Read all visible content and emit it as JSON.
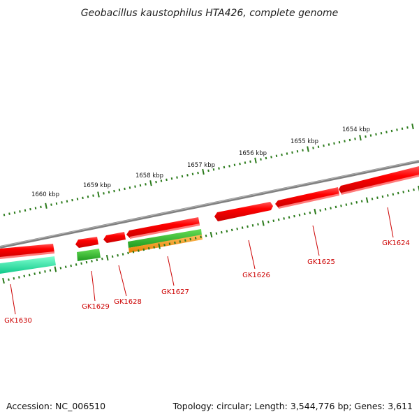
{
  "title": "Geobacillus kaustophilus HTA426, complete genome",
  "footer": {
    "accession": "Accession: NC_006510",
    "summary": "Topology: circular; Length: 3,544,776 bp; Genes: 3,611"
  },
  "kbp_labels": [
    "1660 kbp",
    "1659 kbp",
    "1658 kbp",
    "1657 kbp",
    "1656 kbp",
    "1655 kbp",
    "1654 kbp"
  ],
  "genes": [
    "GK1630",
    "GK1629",
    "GK1628",
    "GK1627",
    "GK1626",
    "GK1625",
    "GK1624"
  ],
  "colors": {
    "cds": "#ff0000",
    "rrna": "#00ff99",
    "gene": "#33cc33",
    "misc": "#ff9900",
    "backbone": "#808080",
    "ticks": "#2a7a1a",
    "gene_label": "#cc0000"
  }
}
